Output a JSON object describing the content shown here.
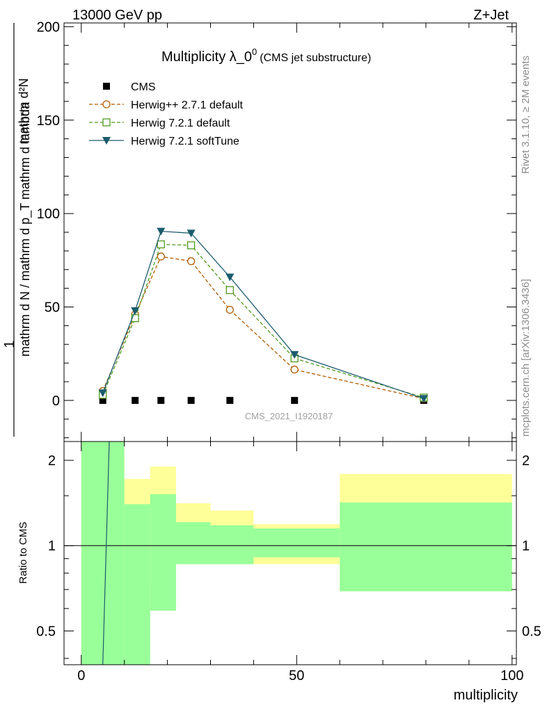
{
  "header": {
    "left": "13000 GeV pp",
    "right": "Z+Jet"
  },
  "side_labels": {
    "rivet": "Rivet 3.1.10, ≥ 2M events",
    "mcplots": "mcplots.cern.ch [arXiv:1306.3436]"
  },
  "chart_data": [
    {
      "type": "line",
      "title_main": "Multiplicity λ_0",
      "title_sup": "0",
      "title_suffix": "(CMS jet substructure)",
      "ylabel_num": "1",
      "ylabel_den": "mathrm d N / mathrm d p_T mathrm d lambda",
      "ylabel_right_num": "mathrm d²N",
      "ylabel_right_den": "mathrm d p_T mathrm d lambda",
      "ylabel_full": "mathrm d²N / mathrm d p_T mathrm d lambda",
      "xlim": [
        -4,
        101
      ],
      "ylim": [
        -22,
        202
      ],
      "yticks": [
        0,
        50,
        100,
        150,
        200
      ],
      "watermark": "CMS_2021_I1920187",
      "legend_position": "top-left",
      "series": [
        {
          "name": "CMS",
          "color": "#000000",
          "marker": "filled-square",
          "line": "none",
          "x": [
            5,
            12.5,
            18.5,
            25.5,
            34.5,
            49.5,
            79.5
          ],
          "y": [
            0,
            0,
            0,
            0,
            0,
            0,
            0
          ]
        },
        {
          "name": "Herwig++ 2.7.1 default",
          "color": "#b15a00",
          "marker": "open-circle",
          "line": "dashed",
          "x": [
            5,
            12.5,
            18.5,
            25.5,
            34.5,
            49.5,
            79.5
          ],
          "y": [
            5,
            46,
            77,
            74.5,
            48.5,
            16.5,
            1
          ]
        },
        {
          "name": "Herwig 7.2.1 default",
          "color": "#4f9a1e",
          "marker": "open-square",
          "line": "dashed",
          "x": [
            5,
            12.5,
            18.5,
            25.5,
            34.5,
            49.5,
            79.5
          ],
          "y": [
            3,
            44,
            83.5,
            83,
            59,
            22.5,
            1.5
          ]
        },
        {
          "name": "Herwig 7.2.1 softTune",
          "color": "#1b5c6e",
          "marker": "filled-down-triangle",
          "line": "solid",
          "x": [
            5,
            12.5,
            18.5,
            25.5,
            34.5,
            49.5,
            79.5
          ],
          "y": [
            4,
            48,
            90.5,
            89.5,
            66,
            24.5,
            1
          ]
        }
      ]
    },
    {
      "type": "area",
      "ylabel": "Ratio to CMS",
      "xlabel": "multiplicity",
      "xlim": [
        -4,
        101
      ],
      "xticks": [
        0,
        50,
        100
      ],
      "ylim": [
        0.38,
        2.33
      ],
      "yscale": "log",
      "yticks": [
        0.5,
        1,
        2
      ],
      "reference_line": 1,
      "bands": {
        "bins": [
          [
            0,
            10
          ],
          [
            10,
            16
          ],
          [
            16,
            22
          ],
          [
            22,
            30
          ],
          [
            30,
            40
          ],
          [
            40,
            60
          ],
          [
            60,
            100
          ]
        ],
        "yellow": [
          [
            0.3,
            3
          ],
          [
            0.72,
            1.72
          ],
          [
            0.59,
            1.9
          ],
          [
            0.86,
            1.41
          ],
          [
            0.86,
            1.33
          ],
          [
            0.86,
            1.19
          ],
          [
            0.69,
            1.79
          ]
        ],
        "green": [
          [
            0.3,
            3
          ],
          [
            0.38,
            1.4
          ],
          [
            0.59,
            1.52
          ],
          [
            0.86,
            1.21
          ],
          [
            0.86,
            1.18
          ],
          [
            0.91,
            1.15
          ],
          [
            0.69,
            1.42
          ]
        ],
        "yellow_color": "#ffff99",
        "green_color": "#99ff99"
      },
      "ratio_line": {
        "color": "#1b5c6e",
        "x": [
          5,
          6.5
        ],
        "y": [
          0.3,
          3
        ]
      }
    }
  ]
}
